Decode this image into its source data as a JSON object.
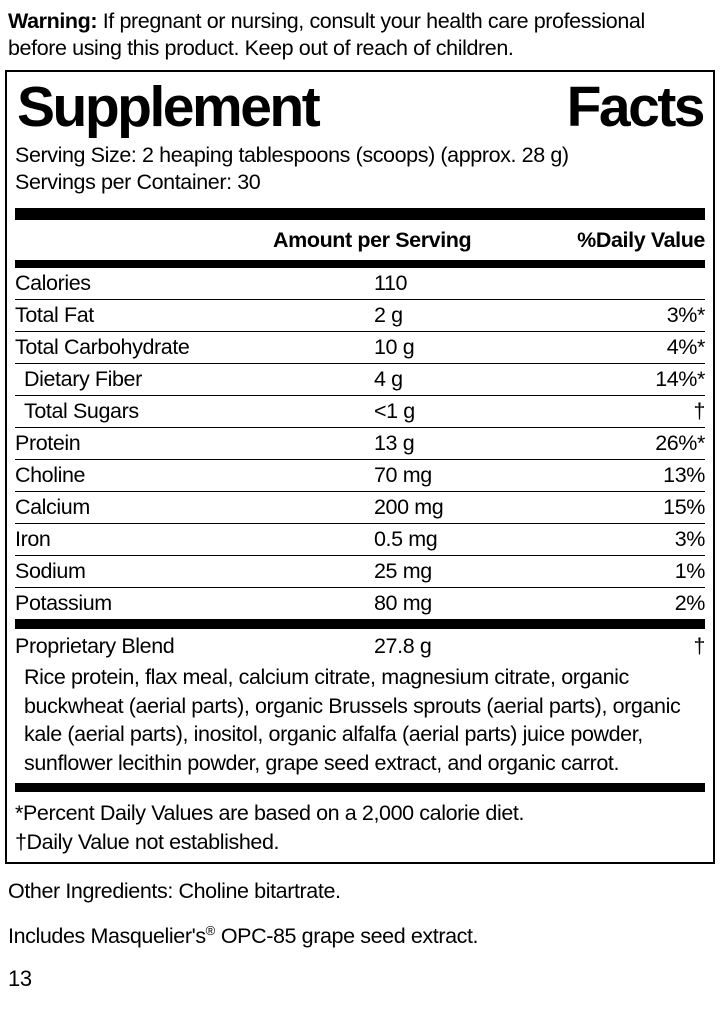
{
  "warning": {
    "label": "Warning:",
    "text": " If pregnant or nursing, consult your health care professional before using this product. Keep out of reach of children."
  },
  "panel": {
    "title_word1": "Supplement",
    "title_word2": "Facts",
    "serving_size": "Serving Size: 2 heaping tablespoons (scoops) (approx. 28 g)",
    "servings_per_container": "Servings per Container: 30",
    "columns": {
      "amount_header": "Amount per Serving",
      "daily_value_header": "%Daily Value"
    },
    "rows": [
      {
        "name": "Calories",
        "amount": "110",
        "dv": "",
        "indent": false
      },
      {
        "name": "Total Fat",
        "amount": "2 g",
        "dv": "3%*",
        "indent": false
      },
      {
        "name": "Total Carbohydrate",
        "amount": "10 g",
        "dv": "4%*",
        "indent": false
      },
      {
        "name": "Dietary Fiber",
        "amount": "4 g",
        "dv": "14%*",
        "indent": true
      },
      {
        "name": "Total Sugars",
        "amount": "<1 g",
        "dv": "†",
        "indent": true
      },
      {
        "name": "Protein",
        "amount": "13 g",
        "dv": "26%*",
        "indent": false
      },
      {
        "name": "Choline",
        "amount": "70 mg",
        "dv": "13%",
        "indent": false
      },
      {
        "name": "Calcium",
        "amount": "200 mg",
        "dv": "15%",
        "indent": false
      },
      {
        "name": "Iron",
        "amount": "0.5 mg",
        "dv": "3%",
        "indent": false
      },
      {
        "name": "Sodium",
        "amount": "25 mg",
        "dv": "1%",
        "indent": false
      },
      {
        "name": "Potassium",
        "amount": "80 mg",
        "dv": "2%",
        "indent": false
      }
    ],
    "proprietary": {
      "name": "Proprietary Blend",
      "amount": "27.8 g",
      "dv": "†",
      "description": "Rice protein, flax meal, calcium citrate, magnesium citrate, organic buckwheat (aerial parts), organic Brussels sprouts (aerial parts), organic kale (aerial parts), inositol, organic alfalfa (aerial parts) juice powder, sunflower lecithin powder, grape seed extract, and organic carrot."
    },
    "footnotes": [
      "*Percent Daily Values are based on a 2,000 calorie diet.",
      "†Daily Value not established."
    ]
  },
  "other_ingredients": "Other Ingredients: Choline bitartrate.",
  "includes": {
    "prefix": "Includes Masquelier's",
    "reg": "®",
    "suffix": " OPC-85 grape seed extract."
  },
  "page_number": "13",
  "colors": {
    "text": "#000000",
    "background": "#ffffff",
    "rule": "#000000"
  }
}
